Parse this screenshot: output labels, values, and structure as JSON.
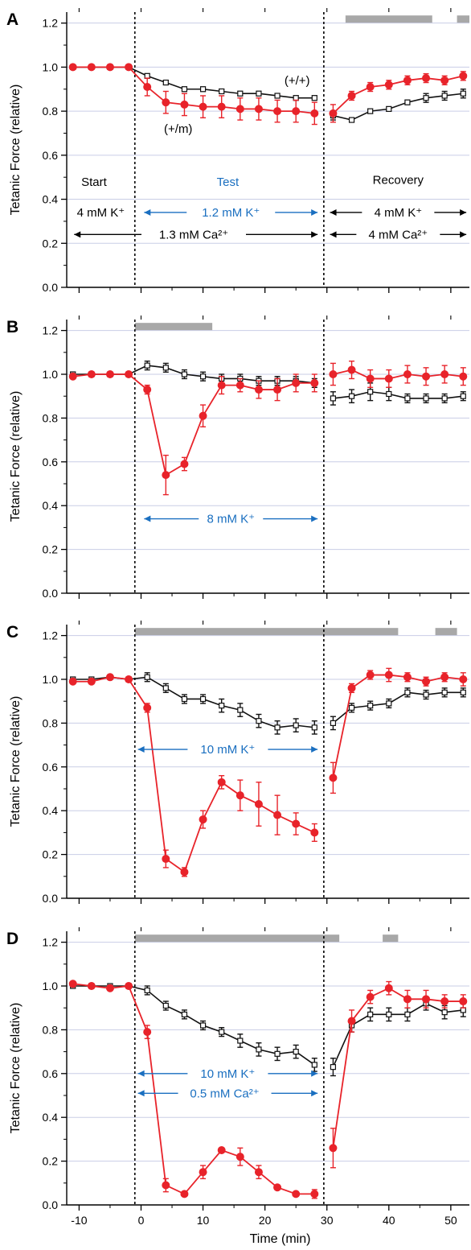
{
  "colors": {
    "mutant": "#e8232a",
    "wildtype": "#111111",
    "test_blue": "#1a6fc0",
    "bar_gray": "#a8a8a8",
    "grid": "#c9cde6"
  },
  "chart_data": [
    {
      "type": "line",
      "panel": "A",
      "xlim": [
        -12,
        53
      ],
      "ylim": [
        0,
        1.25
      ],
      "yticks": [
        "0.0",
        "0.2",
        "0.4",
        "0.6",
        "0.8",
        "1.0",
        "1.2"
      ],
      "xticks": [
        "-10",
        "0",
        "10",
        "20",
        "30",
        "40",
        "50"
      ],
      "xlabel": "",
      "ylabel": "Tetanic Force (relative)",
      "grid": true,
      "vlines": [
        -1,
        29.5
      ],
      "gray_bars": [
        [
          33,
          47
        ],
        [
          51,
          53
        ]
      ],
      "series": [
        {
          "name": "(+/+)",
          "color": "wildtype",
          "x": [
            -11,
            -8,
            -5,
            -2,
            1,
            4,
            7,
            10,
            13,
            16,
            19,
            22,
            25,
            28,
            31,
            34,
            37,
            40,
            43,
            46,
            49,
            52
          ],
          "y": [
            1.0,
            1.0,
            1.0,
            1.0,
            0.96,
            0.93,
            0.9,
            0.9,
            0.89,
            0.88,
            0.88,
            0.87,
            0.86,
            0.86,
            0.78,
            0.76,
            0.8,
            0.81,
            0.84,
            0.86,
            0.87,
            0.88
          ],
          "err": [
            0.01,
            0.01,
            0.01,
            0.01,
            0.01,
            0.01,
            0.01,
            0.01,
            0.01,
            0.01,
            0.01,
            0.01,
            0.01,
            0.01,
            0.02,
            0.01,
            0.01,
            0.01,
            0.01,
            0.02,
            0.02,
            0.02
          ]
        },
        {
          "name": "(+/m)",
          "color": "mutant",
          "x": [
            -11,
            -8,
            -5,
            -2,
            1,
            4,
            7,
            10,
            13,
            16,
            19,
            22,
            25,
            28,
            31,
            34,
            37,
            40,
            43,
            46,
            49,
            52
          ],
          "y": [
            1.0,
            1.0,
            1.0,
            1.0,
            0.91,
            0.84,
            0.83,
            0.82,
            0.82,
            0.81,
            0.81,
            0.8,
            0.8,
            0.79,
            0.79,
            0.87,
            0.91,
            0.92,
            0.94,
            0.95,
            0.94,
            0.96
          ],
          "err": [
            0.01,
            0.01,
            0.01,
            0.01,
            0.04,
            0.05,
            0.05,
            0.05,
            0.05,
            0.05,
            0.05,
            0.05,
            0.05,
            0.05,
            0.04,
            0.02,
            0.02,
            0.02,
            0.02,
            0.02,
            0.02,
            0.02
          ]
        }
      ],
      "annotations": {
        "label_wt": "(+/+)",
        "label_mut": "(+/m)",
        "start": "Start",
        "test": "Test",
        "recovery": "Recovery",
        "start_k": "4 mM K⁺",
        "test_k": "1.2 mM K⁺",
        "baseline_ca": "1.3 mM Ca²⁺",
        "recovery_k": "4 mM K⁺",
        "recovery_ca": "4 mM Ca²⁺"
      }
    },
    {
      "type": "line",
      "panel": "B",
      "xlim": [
        -12,
        53
      ],
      "ylim": [
        0,
        1.25
      ],
      "yticks": [
        "0.0",
        "0.2",
        "0.4",
        "0.6",
        "0.8",
        "1.0",
        "1.2"
      ],
      "xticks": [
        "-10",
        "0",
        "10",
        "20",
        "30",
        "40",
        "50"
      ],
      "xlabel": "",
      "ylabel": "Tetanic Force (relative)",
      "grid": true,
      "vlines": [
        -1,
        29.5
      ],
      "gray_bars": [
        [
          -1,
          11.5
        ]
      ],
      "series": [
        {
          "name": "",
          "color": "wildtype",
          "x": [
            -11,
            -8,
            -5,
            -2,
            1,
            4,
            7,
            10,
            13,
            16,
            19,
            22,
            25,
            28,
            31,
            34,
            37,
            40,
            43,
            46,
            49,
            52
          ],
          "y": [
            1.0,
            1.0,
            1.0,
            1.0,
            1.04,
            1.03,
            1.0,
            0.99,
            0.98,
            0.98,
            0.97,
            0.97,
            0.97,
            0.96,
            0.89,
            0.9,
            0.92,
            0.91,
            0.89,
            0.89,
            0.89,
            0.9
          ],
          "err": [
            0.01,
            0.01,
            0.01,
            0.01,
            0.02,
            0.02,
            0.02,
            0.02,
            0.02,
            0.02,
            0.02,
            0.02,
            0.02,
            0.02,
            0.03,
            0.03,
            0.04,
            0.03,
            0.02,
            0.02,
            0.02,
            0.02
          ]
        },
        {
          "name": "",
          "color": "mutant",
          "x": [
            -11,
            -8,
            -5,
            -2,
            1,
            4,
            7,
            10,
            13,
            16,
            19,
            22,
            25,
            28,
            31,
            34,
            37,
            40,
            43,
            46,
            49,
            52
          ],
          "y": [
            0.99,
            1.0,
            1.0,
            1.0,
            0.93,
            0.54,
            0.59,
            0.81,
            0.95,
            0.95,
            0.93,
            0.93,
            0.96,
            0.96,
            1.0,
            1.02,
            0.98,
            0.98,
            1.0,
            0.99,
            1.0,
            0.99
          ],
          "err": [
            0.01,
            0.01,
            0.01,
            0.01,
            0.02,
            0.09,
            0.03,
            0.05,
            0.04,
            0.03,
            0.04,
            0.05,
            0.04,
            0.04,
            0.05,
            0.04,
            0.04,
            0.04,
            0.04,
            0.04,
            0.04,
            0.04
          ]
        }
      ],
      "annotations": {
        "test_k": "8 mM K⁺"
      }
    },
    {
      "type": "line",
      "panel": "C",
      "xlim": [
        -12,
        53
      ],
      "ylim": [
        0,
        1.25
      ],
      "yticks": [
        "0.0",
        "0.2",
        "0.4",
        "0.6",
        "0.8",
        "1.0",
        "1.2"
      ],
      "xticks": [
        "-10",
        "0",
        "10",
        "20",
        "30",
        "40",
        "50"
      ],
      "xlabel": "",
      "ylabel": "Tetanic Force (relative)",
      "grid": true,
      "vlines": [
        -1,
        29.5
      ],
      "gray_bars": [
        [
          -1,
          41.5
        ],
        [
          47.5,
          51
        ]
      ],
      "series": [
        {
          "name": "",
          "color": "wildtype",
          "x": [
            -11,
            -8,
            -5,
            -2,
            1,
            4,
            7,
            10,
            13,
            16,
            19,
            22,
            25,
            28,
            31,
            34,
            37,
            40,
            43,
            46,
            49,
            52
          ],
          "y": [
            1.0,
            1.0,
            1.01,
            1.0,
            1.01,
            0.96,
            0.91,
            0.91,
            0.88,
            0.86,
            0.81,
            0.78,
            0.79,
            0.78,
            0.8,
            0.87,
            0.88,
            0.89,
            0.94,
            0.93,
            0.94,
            0.94
          ],
          "err": [
            0.01,
            0.01,
            0.01,
            0.01,
            0.02,
            0.02,
            0.02,
            0.02,
            0.03,
            0.03,
            0.03,
            0.03,
            0.03,
            0.03,
            0.03,
            0.02,
            0.02,
            0.02,
            0.02,
            0.02,
            0.02,
            0.02
          ]
        },
        {
          "name": "",
          "color": "mutant",
          "x": [
            -11,
            -8,
            -5,
            -2,
            1,
            4,
            7,
            10,
            13,
            16,
            19,
            22,
            25,
            28,
            31,
            34,
            37,
            40,
            43,
            46,
            49,
            52
          ],
          "y": [
            0.99,
            0.99,
            1.01,
            1.0,
            0.87,
            0.18,
            0.12,
            0.36,
            0.53,
            0.47,
            0.43,
            0.38,
            0.34,
            0.3,
            0.55,
            0.96,
            1.02,
            1.02,
            1.01,
            0.99,
            1.01,
            1.0
          ],
          "err": [
            0.01,
            0.01,
            0.01,
            0.01,
            0.02,
            0.04,
            0.02,
            0.04,
            0.03,
            0.07,
            0.1,
            0.09,
            0.05,
            0.04,
            0.07,
            0.02,
            0.02,
            0.03,
            0.02,
            0.02,
            0.02,
            0.03
          ]
        }
      ],
      "annotations": {
        "test_k": "10 mM K⁺"
      }
    },
    {
      "type": "line",
      "panel": "D",
      "xlim": [
        -12,
        53
      ],
      "ylim": [
        0,
        1.25
      ],
      "yticks": [
        "0.0",
        "0.2",
        "0.4",
        "0.6",
        "0.8",
        "1.0",
        "1.2"
      ],
      "xticks": [
        "-10",
        "0",
        "10",
        "20",
        "30",
        "40",
        "50"
      ],
      "xlabel": "Time (min)",
      "ylabel": "Tetanic Force (relative)",
      "grid": true,
      "vlines": [
        -1,
        29.5
      ],
      "gray_bars": [
        [
          -1,
          32
        ],
        [
          39,
          41.5
        ]
      ],
      "series": [
        {
          "name": "",
          "color": "wildtype",
          "x": [
            -11,
            -8,
            -5,
            -2,
            1,
            4,
            7,
            10,
            13,
            16,
            19,
            22,
            25,
            28,
            31,
            34,
            37,
            40,
            43,
            46,
            49,
            52
          ],
          "y": [
            1.0,
            1.0,
            1.0,
            1.0,
            0.98,
            0.91,
            0.87,
            0.82,
            0.79,
            0.75,
            0.71,
            0.69,
            0.7,
            0.64,
            0.63,
            0.82,
            0.87,
            0.87,
            0.87,
            0.92,
            0.88,
            0.89
          ],
          "err": [
            0.01,
            0.01,
            0.01,
            0.01,
            0.02,
            0.02,
            0.02,
            0.02,
            0.02,
            0.03,
            0.03,
            0.03,
            0.03,
            0.03,
            0.04,
            0.03,
            0.03,
            0.03,
            0.03,
            0.03,
            0.03,
            0.03
          ]
        },
        {
          "name": "",
          "color": "mutant",
          "x": [
            -11,
            -8,
            -5,
            -2,
            1,
            4,
            7,
            10,
            13,
            16,
            19,
            22,
            25,
            28,
            31,
            34,
            37,
            40,
            43,
            46,
            49,
            52
          ],
          "y": [
            1.01,
            1.0,
            0.99,
            1.0,
            0.79,
            0.09,
            0.05,
            0.15,
            0.25,
            0.22,
            0.15,
            0.08,
            0.05,
            0.05,
            0.26,
            0.84,
            0.95,
            0.99,
            0.94,
            0.94,
            0.93,
            0.93
          ],
          "err": [
            0.01,
            0.01,
            0.01,
            0.01,
            0.03,
            0.03,
            0.01,
            0.03,
            0.01,
            0.04,
            0.03,
            0.01,
            0.01,
            0.02,
            0.09,
            0.05,
            0.03,
            0.03,
            0.04,
            0.04,
            0.03,
            0.03
          ]
        }
      ],
      "annotations": {
        "test_k": "10 mM K⁺",
        "test_ca": "0.5 mM Ca²⁺"
      }
    }
  ]
}
